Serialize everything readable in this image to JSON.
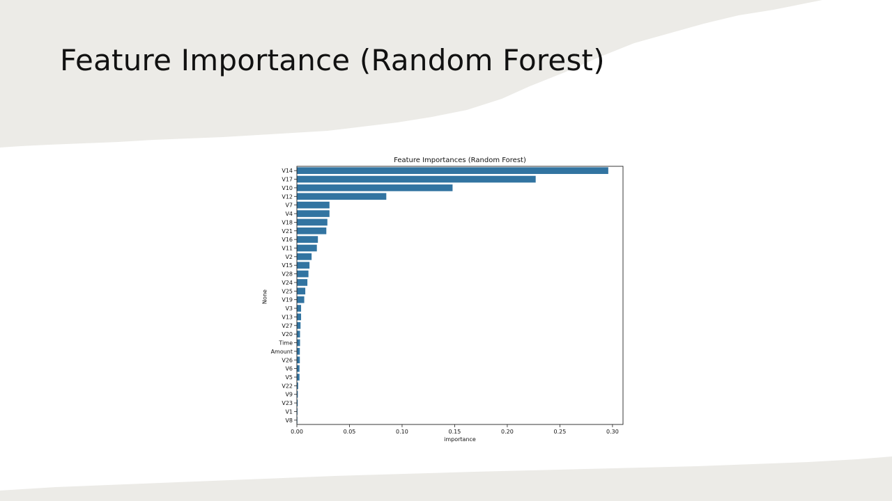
{
  "slide": {
    "title": "Feature Importance (Random Forest)"
  },
  "colors": {
    "bar": "#3274a1",
    "background_paper": "#ecebe7"
  },
  "chart_data": {
    "type": "bar",
    "orientation": "horizontal",
    "title": "Feature Importances (Random Forest)",
    "xlabel": "importance",
    "ylabel": "None",
    "xlim": [
      0,
      0.31
    ],
    "xticks": [
      "0.00",
      "0.05",
      "0.10",
      "0.15",
      "0.20",
      "0.25",
      "0.30"
    ],
    "categories": [
      "V14",
      "V17",
      "V10",
      "V12",
      "V7",
      "V4",
      "V18",
      "V21",
      "V16",
      "V11",
      "V2",
      "V15",
      "V28",
      "V24",
      "V25",
      "V19",
      "V3",
      "V13",
      "V27",
      "V20",
      "Time",
      "Amount",
      "V26",
      "V6",
      "V5",
      "V22",
      "V9",
      "V23",
      "V1",
      "V8"
    ],
    "values": [
      0.296,
      0.227,
      0.148,
      0.085,
      0.031,
      0.031,
      0.029,
      0.028,
      0.02,
      0.019,
      0.014,
      0.012,
      0.011,
      0.01,
      0.008,
      0.007,
      0.004,
      0.004,
      0.0035,
      0.003,
      0.003,
      0.0028,
      0.0028,
      0.0025,
      0.0025,
      0.0012,
      0.0009,
      0.0008,
      0.0006,
      0.0005
    ],
    "grid": false,
    "legend": "none"
  }
}
